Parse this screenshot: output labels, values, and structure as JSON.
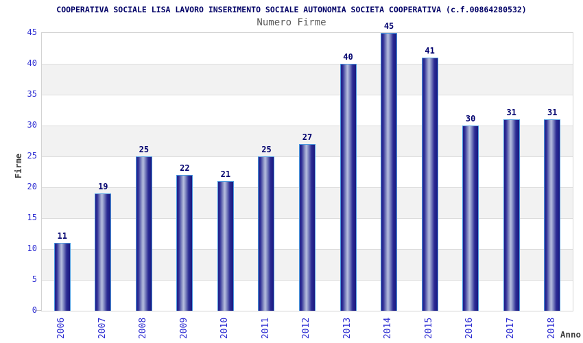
{
  "chart_data": {
    "type": "bar",
    "title": "COOPERATIVA SOCIALE LISA LAVORO INSERIMENTO SOCIALE AUTONOMIA SOCIETA COOPERATIVA (c.f.00864280532)",
    "subtitle": "Numero Firme",
    "xlabel": "Anno",
    "ylabel": "Firme",
    "categories": [
      "2006",
      "2007",
      "2008",
      "2009",
      "2010",
      "2011",
      "2012",
      "2013",
      "2014",
      "2015",
      "2016",
      "2017",
      "2018"
    ],
    "values": [
      11,
      19,
      25,
      22,
      21,
      25,
      27,
      40,
      45,
      41,
      30,
      31,
      31
    ],
    "ylim": [
      0,
      45
    ],
    "yticks": [
      0,
      5,
      10,
      15,
      20,
      25,
      30,
      35,
      40,
      45
    ],
    "grid": true,
    "legend": "none",
    "bands": "alternating horizontal white/gray stripes every 5 units",
    "colors": {
      "title": "#000066",
      "subtitle": "#595959",
      "axis_title": "#3d3d3d",
      "tick_label": "#2d2dd2",
      "value_label": "#00006e",
      "bar_border": "#4d9be0",
      "bar_dark": "#20208a",
      "bar_light": "#b6bddf",
      "band_gray": "#f2f2f2",
      "gridline": "#dcdcdc",
      "plot_border": "#d3d3d3"
    }
  }
}
